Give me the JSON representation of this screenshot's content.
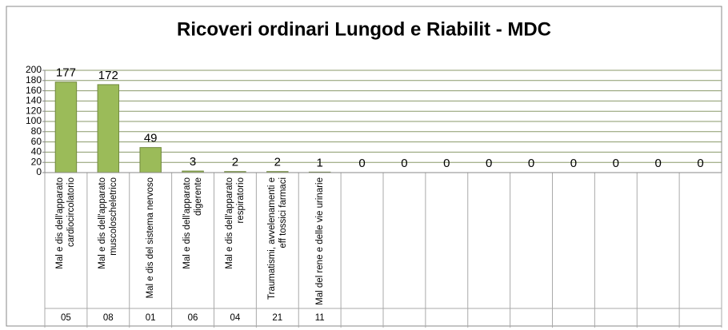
{
  "chart_data": {
    "type": "bar",
    "title": "Ricoveri ordinari Lungod e Riabilit - MDC",
    "categories": [
      "Mal e dis dell'apparato cardiocircolatorio",
      "Mal e dis dell'apparato muscoloscheletrico",
      "Mal e dis del sistema nervoso",
      "Mal e dis dell'apparato digerente",
      "Mal e dis dell'apparato respiratorio",
      "Traumatismi, avvelenamenti e eff tossici farmaci",
      "Mal del rene e delle vie urinarie",
      null,
      null,
      null,
      null,
      null,
      null,
      null,
      null,
      null
    ],
    "codes": [
      "05",
      "08",
      "01",
      "06",
      "04",
      "21",
      "11",
      null,
      null,
      null,
      null,
      null,
      null,
      null,
      null,
      null
    ],
    "values": [
      177,
      172,
      49,
      3,
      2,
      2,
      1,
      0,
      0,
      0,
      0,
      0,
      0,
      0,
      0,
      0
    ],
    "color": "#9bbb59",
    "ylim": [
      0,
      200
    ],
    "yticks": [
      0,
      20,
      40,
      60,
      80,
      100,
      120,
      140,
      160,
      180,
      200
    ],
    "grid": true
  }
}
